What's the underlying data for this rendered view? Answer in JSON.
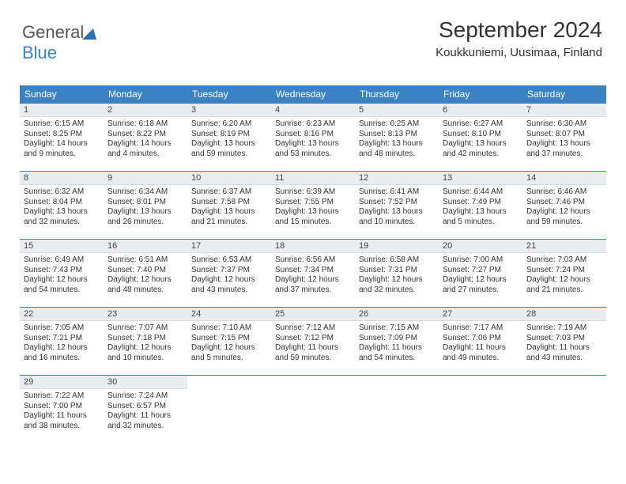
{
  "logo": {
    "text1": "General",
    "text2": "Blue",
    "triangle_color": "#2e6fb0"
  },
  "header": {
    "title": "September 2024",
    "location": "Koukkuniemi, Uusimaa, Finland",
    "title_fontsize": 28,
    "location_fontsize": 15
  },
  "colors": {
    "header_bg": "#3b82c4",
    "header_fg": "#ffffff",
    "daynum_bg": "#e9edf0",
    "border": "#3b82c4",
    "text": "#333333"
  },
  "day_names": [
    "Sunday",
    "Monday",
    "Tuesday",
    "Wednesday",
    "Thursday",
    "Friday",
    "Saturday"
  ],
  "weeks": [
    [
      {
        "n": "1",
        "sunrise": "6:15 AM",
        "sunset": "8:25 PM",
        "dl": "14 hours and 9 minutes."
      },
      {
        "n": "2",
        "sunrise": "6:18 AM",
        "sunset": "8:22 PM",
        "dl": "14 hours and 4 minutes."
      },
      {
        "n": "3",
        "sunrise": "6:20 AM",
        "sunset": "8:19 PM",
        "dl": "13 hours and 59 minutes."
      },
      {
        "n": "4",
        "sunrise": "6:23 AM",
        "sunset": "8:16 PM",
        "dl": "13 hours and 53 minutes."
      },
      {
        "n": "5",
        "sunrise": "6:25 AM",
        "sunset": "8:13 PM",
        "dl": "13 hours and 48 minutes."
      },
      {
        "n": "6",
        "sunrise": "6:27 AM",
        "sunset": "8:10 PM",
        "dl": "13 hours and 42 minutes."
      },
      {
        "n": "7",
        "sunrise": "6:30 AM",
        "sunset": "8:07 PM",
        "dl": "13 hours and 37 minutes."
      }
    ],
    [
      {
        "n": "8",
        "sunrise": "6:32 AM",
        "sunset": "8:04 PM",
        "dl": "13 hours and 32 minutes."
      },
      {
        "n": "9",
        "sunrise": "6:34 AM",
        "sunset": "8:01 PM",
        "dl": "13 hours and 26 minutes."
      },
      {
        "n": "10",
        "sunrise": "6:37 AM",
        "sunset": "7:58 PM",
        "dl": "13 hours and 21 minutes."
      },
      {
        "n": "11",
        "sunrise": "6:39 AM",
        "sunset": "7:55 PM",
        "dl": "13 hours and 15 minutes."
      },
      {
        "n": "12",
        "sunrise": "6:41 AM",
        "sunset": "7:52 PM",
        "dl": "13 hours and 10 minutes."
      },
      {
        "n": "13",
        "sunrise": "6:44 AM",
        "sunset": "7:49 PM",
        "dl": "13 hours and 5 minutes."
      },
      {
        "n": "14",
        "sunrise": "6:46 AM",
        "sunset": "7:46 PM",
        "dl": "12 hours and 59 minutes."
      }
    ],
    [
      {
        "n": "15",
        "sunrise": "6:49 AM",
        "sunset": "7:43 PM",
        "dl": "12 hours and 54 minutes."
      },
      {
        "n": "16",
        "sunrise": "6:51 AM",
        "sunset": "7:40 PM",
        "dl": "12 hours and 48 minutes."
      },
      {
        "n": "17",
        "sunrise": "6:53 AM",
        "sunset": "7:37 PM",
        "dl": "12 hours and 43 minutes."
      },
      {
        "n": "18",
        "sunrise": "6:56 AM",
        "sunset": "7:34 PM",
        "dl": "12 hours and 37 minutes."
      },
      {
        "n": "19",
        "sunrise": "6:58 AM",
        "sunset": "7:31 PM",
        "dl": "12 hours and 32 minutes."
      },
      {
        "n": "20",
        "sunrise": "7:00 AM",
        "sunset": "7:27 PM",
        "dl": "12 hours and 27 minutes."
      },
      {
        "n": "21",
        "sunrise": "7:03 AM",
        "sunset": "7:24 PM",
        "dl": "12 hours and 21 minutes."
      }
    ],
    [
      {
        "n": "22",
        "sunrise": "7:05 AM",
        "sunset": "7:21 PM",
        "dl": "12 hours and 16 minutes."
      },
      {
        "n": "23",
        "sunrise": "7:07 AM",
        "sunset": "7:18 PM",
        "dl": "12 hours and 10 minutes."
      },
      {
        "n": "24",
        "sunrise": "7:10 AM",
        "sunset": "7:15 PM",
        "dl": "12 hours and 5 minutes."
      },
      {
        "n": "25",
        "sunrise": "7:12 AM",
        "sunset": "7:12 PM",
        "dl": "11 hours and 59 minutes."
      },
      {
        "n": "26",
        "sunrise": "7:15 AM",
        "sunset": "7:09 PM",
        "dl": "11 hours and 54 minutes."
      },
      {
        "n": "27",
        "sunrise": "7:17 AM",
        "sunset": "7:06 PM",
        "dl": "11 hours and 49 minutes."
      },
      {
        "n": "28",
        "sunrise": "7:19 AM",
        "sunset": "7:03 PM",
        "dl": "11 hours and 43 minutes."
      }
    ],
    [
      {
        "n": "29",
        "sunrise": "7:22 AM",
        "sunset": "7:00 PM",
        "dl": "11 hours and 38 minutes."
      },
      {
        "n": "30",
        "sunrise": "7:24 AM",
        "sunset": "6:57 PM",
        "dl": "11 hours and 32 minutes."
      },
      null,
      null,
      null,
      null,
      null
    ]
  ],
  "labels": {
    "sunrise": "Sunrise:",
    "sunset": "Sunset:",
    "daylight": "Daylight:"
  }
}
